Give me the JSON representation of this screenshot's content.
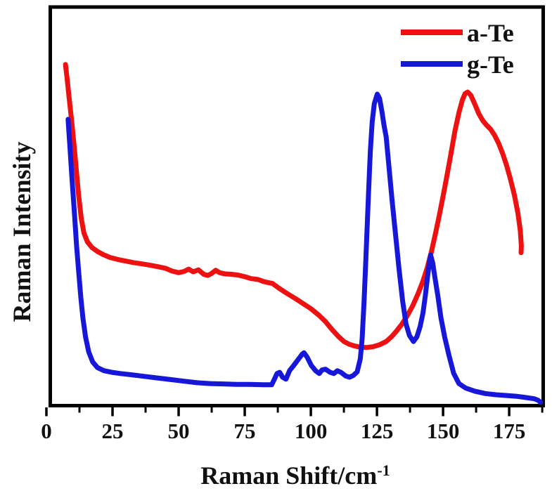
{
  "figure": {
    "background_color": "#ffffff",
    "frame_color": "#000000"
  },
  "chart_data": {
    "type": "line",
    "title": "",
    "xlabel": "Raman Shift/cm⁻¹",
    "xlabel_parts": {
      "base": "Raman Shift/cm",
      "superscript": "-1"
    },
    "ylabel": "Raman Intensity",
    "xlim": [
      0,
      188
    ],
    "ylim": [
      0,
      1
    ],
    "grid": false,
    "x_ticks_major": [
      0,
      25,
      50,
      75,
      100,
      125,
      150,
      175
    ],
    "x_ticks_minor": [
      12.5,
      37.5,
      62.5,
      87.5,
      112.5,
      137.5,
      162.5,
      187.5
    ],
    "y_ticks": [],
    "legend": {
      "position": "top-right",
      "entries": [
        {
          "label": "a-Te",
          "color": "#ee1111"
        },
        {
          "label": "g-Te",
          "color": "#1717d9"
        }
      ]
    },
    "series": [
      {
        "name": "a-Te",
        "color": "#ee1111",
        "points": [
          [
            7.2,
            0.853
          ],
          [
            7.8,
            0.82
          ],
          [
            8.6,
            0.77
          ],
          [
            9.5,
            0.715
          ],
          [
            10.4,
            0.655
          ],
          [
            11.3,
            0.59
          ],
          [
            12.2,
            0.525
          ],
          [
            13.2,
            0.468
          ],
          [
            14.2,
            0.432
          ],
          [
            15.5,
            0.41
          ],
          [
            17.2,
            0.396
          ],
          [
            19.3,
            0.386
          ],
          [
            21.5,
            0.378
          ],
          [
            24,
            0.371
          ],
          [
            27,
            0.366
          ],
          [
            30,
            0.362
          ],
          [
            33,
            0.358
          ],
          [
            36,
            0.355
          ],
          [
            39,
            0.352
          ],
          [
            42,
            0.348
          ],
          [
            45,
            0.344
          ],
          [
            47.5,
            0.337
          ],
          [
            50,
            0.333
          ],
          [
            52,
            0.336
          ],
          [
            53.8,
            0.342
          ],
          [
            55.5,
            0.335
          ],
          [
            57.5,
            0.34
          ],
          [
            59.5,
            0.329
          ],
          [
            61,
            0.326
          ],
          [
            62.5,
            0.331
          ],
          [
            64,
            0.339
          ],
          [
            65.5,
            0.333
          ],
          [
            67.5,
            0.33
          ],
          [
            70,
            0.329
          ],
          [
            72.5,
            0.327
          ],
          [
            75,
            0.323
          ],
          [
            77.5,
            0.318
          ],
          [
            80,
            0.316
          ],
          [
            82,
            0.311
          ],
          [
            84,
            0.308
          ],
          [
            85.5,
            0.306
          ],
          [
            88,
            0.294
          ],
          [
            91,
            0.281
          ],
          [
            94,
            0.269
          ],
          [
            97,
            0.256
          ],
          [
            100,
            0.243
          ],
          [
            103,
            0.227
          ],
          [
            105.5,
            0.211
          ],
          [
            108,
            0.191
          ],
          [
            110.5,
            0.173
          ],
          [
            112.5,
            0.161
          ],
          [
            114.5,
            0.154
          ],
          [
            116.5,
            0.15
          ],
          [
            118.5,
            0.147
          ],
          [
            121,
            0.146
          ],
          [
            123.5,
            0.148
          ],
          [
            126,
            0.153
          ],
          [
            128.5,
            0.161
          ],
          [
            130.5,
            0.173
          ],
          [
            132.5,
            0.188
          ],
          [
            134.5,
            0.205
          ],
          [
            136.5,
            0.226
          ],
          [
            138.5,
            0.25
          ],
          [
            140.5,
            0.28
          ],
          [
            142.3,
            0.31
          ],
          [
            144,
            0.345
          ],
          [
            145.5,
            0.383
          ],
          [
            147,
            0.427
          ],
          [
            148.5,
            0.474
          ],
          [
            150,
            0.524
          ],
          [
            151.5,
            0.576
          ],
          [
            153,
            0.631
          ],
          [
            154.5,
            0.687
          ],
          [
            156,
            0.733
          ],
          [
            157.3,
            0.764
          ],
          [
            158.3,
            0.78
          ],
          [
            159.3,
            0.784
          ],
          [
            160.5,
            0.776
          ],
          [
            162,
            0.754
          ],
          [
            163.5,
            0.73
          ],
          [
            165,
            0.713
          ],
          [
            166.5,
            0.701
          ],
          [
            168,
            0.691
          ],
          [
            169.5,
            0.676
          ],
          [
            171,
            0.656
          ],
          [
            172.5,
            0.631
          ],
          [
            174,
            0.601
          ],
          [
            175.5,
            0.566
          ],
          [
            177,
            0.526
          ],
          [
            178.3,
            0.482
          ],
          [
            179.2,
            0.438
          ],
          [
            179.6,
            0.4
          ],
          [
            179.5,
            0.383
          ]
        ]
      },
      {
        "name": "g-Te",
        "color": "#1717d9",
        "points": [
          [
            8.2,
            0.716
          ],
          [
            8.9,
            0.645
          ],
          [
            9.7,
            0.565
          ],
          [
            10.6,
            0.48
          ],
          [
            11.4,
            0.4
          ],
          [
            12.2,
            0.335
          ],
          [
            13,
            0.272
          ],
          [
            13.8,
            0.22
          ],
          [
            14.8,
            0.172
          ],
          [
            16,
            0.135
          ],
          [
            17.5,
            0.11
          ],
          [
            19.3,
            0.096
          ],
          [
            21.8,
            0.088
          ],
          [
            24.8,
            0.084
          ],
          [
            28,
            0.081
          ],
          [
            32,
            0.078
          ],
          [
            37,
            0.074
          ],
          [
            42,
            0.07
          ],
          [
            47,
            0.066
          ],
          [
            52,
            0.062
          ],
          [
            57,
            0.058
          ],
          [
            62,
            0.056
          ],
          [
            67,
            0.055
          ],
          [
            72,
            0.054
          ],
          [
            77,
            0.054
          ],
          [
            82,
            0.053
          ],
          [
            85.2,
            0.053
          ],
          [
            86.3,
            0.068
          ],
          [
            87.2,
            0.081
          ],
          [
            88.2,
            0.084
          ],
          [
            89.3,
            0.072
          ],
          [
            90.6,
            0.067
          ],
          [
            92,
            0.089
          ],
          [
            93.5,
            0.101
          ],
          [
            95.2,
            0.116
          ],
          [
            96.8,
            0.13
          ],
          [
            97.4,
            0.133
          ],
          [
            98.6,
            0.122
          ],
          [
            100.2,
            0.101
          ],
          [
            101.8,
            0.088
          ],
          [
            103.2,
            0.081
          ],
          [
            104.2,
            0.09
          ],
          [
            105.5,
            0.092
          ],
          [
            107.3,
            0.084
          ],
          [
            108.7,
            0.081
          ],
          [
            110,
            0.088
          ],
          [
            111.4,
            0.084
          ],
          [
            113.2,
            0.075
          ],
          [
            114.6,
            0.072
          ],
          [
            116,
            0.076
          ],
          [
            117.5,
            0.085
          ],
          [
            118.7,
            0.118
          ],
          [
            119.4,
            0.168
          ],
          [
            120.1,
            0.26
          ],
          [
            120.7,
            0.35
          ],
          [
            121.3,
            0.45
          ],
          [
            121.9,
            0.545
          ],
          [
            122.5,
            0.638
          ],
          [
            123.2,
            0.71
          ],
          [
            124,
            0.755
          ],
          [
            125.1,
            0.779
          ],
          [
            126,
            0.768
          ],
          [
            126.9,
            0.735
          ],
          [
            127.7,
            0.7
          ],
          [
            128.5,
            0.672
          ],
          [
            129.5,
            0.6
          ],
          [
            130.7,
            0.515
          ],
          [
            132,
            0.43
          ],
          [
            133.3,
            0.345
          ],
          [
            134.7,
            0.262
          ],
          [
            136,
            0.205
          ],
          [
            137.3,
            0.176
          ],
          [
            138.8,
            0.161
          ],
          [
            140.1,
            0.173
          ],
          [
            141.3,
            0.198
          ],
          [
            142.4,
            0.232
          ],
          [
            143.3,
            0.276
          ],
          [
            144.1,
            0.321
          ],
          [
            144.8,
            0.356
          ],
          [
            145.3,
            0.377
          ],
          [
            146.1,
            0.357
          ],
          [
            146.9,
            0.322
          ],
          [
            148,
            0.276
          ],
          [
            149.2,
            0.22
          ],
          [
            150.6,
            0.172
          ],
          [
            152.2,
            0.127
          ],
          [
            154,
            0.082
          ],
          [
            156,
            0.056
          ],
          [
            158.5,
            0.045
          ],
          [
            162,
            0.037
          ],
          [
            166,
            0.031
          ],
          [
            170,
            0.028
          ],
          [
            174.5,
            0.026
          ],
          [
            178,
            0.024
          ],
          [
            180.5,
            0.022
          ],
          [
            182.5,
            0.02
          ],
          [
            184.5,
            0.018
          ],
          [
            186,
            0.014
          ],
          [
            186.9,
            0.009
          ]
        ]
      }
    ]
  }
}
